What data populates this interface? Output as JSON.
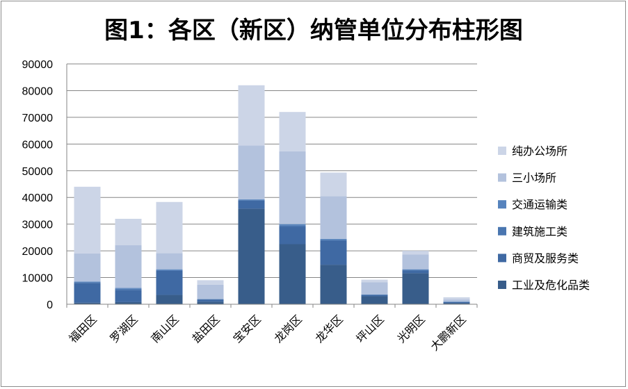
{
  "chart_data": {
    "type": "bar",
    "stacked": true,
    "title": "图1：各区（新区）纳管单位分布柱形图",
    "xlabel": "",
    "ylabel": "",
    "ylim": [
      0,
      90000
    ],
    "yticks": [
      0,
      10000,
      20000,
      30000,
      40000,
      50000,
      60000,
      70000,
      80000,
      90000
    ],
    "grid": true,
    "legend": "right",
    "categories": [
      "福田区",
      "罗湖区",
      "南山区",
      "盐田区",
      "宝安区",
      "龙岗区",
      "龙华区",
      "坪山区",
      "光明区",
      "大鹏新区"
    ],
    "series": [
      {
        "name": "工业及危化品类",
        "color": "#385d8a",
        "values": [
          600,
          800,
          3500,
          1000,
          35800,
          22500,
          14800,
          3000,
          11600,
          500
        ]
      },
      {
        "name": "商贸及服务类",
        "color": "#3f69a3",
        "values": [
          7400,
          4500,
          9000,
          800,
          3000,
          6500,
          9000,
          500,
          1000,
          300
        ]
      },
      {
        "name": "建筑施工类",
        "color": "#4a76b0",
        "values": [
          300,
          500,
          300,
          100,
          300,
          600,
          300,
          100,
          300,
          100
        ]
      },
      {
        "name": "交通运输类",
        "color": "#5683bd",
        "values": [
          200,
          300,
          300,
          100,
          200,
          400,
          400,
          100,
          200,
          100
        ]
      },
      {
        "name": "三小场所",
        "color": "#b3c2dd",
        "values": [
          10500,
          16000,
          6000,
          5300,
          20200,
          27300,
          16000,
          4500,
          5500,
          800
        ]
      },
      {
        "name": "纯办公场所",
        "color": "#ccd5e7",
        "values": [
          25000,
          9900,
          19200,
          1700,
          22500,
          14700,
          8800,
          1000,
          1400,
          800
        ]
      }
    ]
  }
}
